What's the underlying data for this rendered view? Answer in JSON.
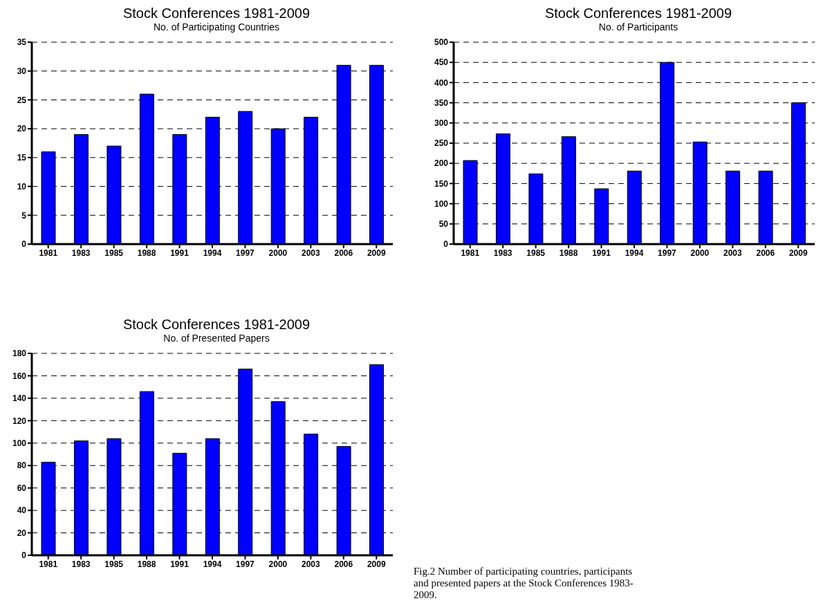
{
  "chart_data": [
    {
      "type": "bar",
      "title": "Stock Conferences 1981-2009",
      "subtitle": "No. of Participating Countries",
      "categories": [
        "1981",
        "1983",
        "1985",
        "1988",
        "1991",
        "1994",
        "1997",
        "2000",
        "2003",
        "2006",
        "2009"
      ],
      "values": [
        16,
        19,
        17,
        26,
        19,
        22,
        23,
        20,
        22,
        31,
        31
      ],
      "color": "#0000ff",
      "ylim": [
        0,
        35
      ],
      "yticks": [
        0,
        5,
        10,
        15,
        20,
        25,
        30,
        35
      ],
      "grid": "y"
    },
    {
      "type": "bar",
      "title": "Stock Conferences 1981-2009",
      "subtitle": "No. of Participants",
      "categories": [
        "1981",
        "1983",
        "1985",
        "1988",
        "1991",
        "1994",
        "1997",
        "2000",
        "2003",
        "2006",
        "2009"
      ],
      "values": [
        207,
        273,
        174,
        266,
        137,
        181,
        450,
        253,
        181,
        181,
        350
      ],
      "color": "#0000ff",
      "ylim": [
        0,
        500
      ],
      "yticks": [
        0,
        50,
        100,
        150,
        200,
        250,
        300,
        350,
        400,
        450,
        500
      ],
      "grid": "y"
    },
    {
      "type": "bar",
      "title": "Stock Conferences 1981-2009",
      "subtitle": "No. of Presented Papers",
      "categories": [
        "1981",
        "1983",
        "1985",
        "1988",
        "1991",
        "1994",
        "1997",
        "2000",
        "2003",
        "2006",
        "2009"
      ],
      "values": [
        83,
        102,
        104,
        146,
        91,
        104,
        166,
        137,
        108,
        97,
        170
      ],
      "color": "#0000ff",
      "ylim": [
        0,
        180
      ],
      "yticks": [
        0,
        20,
        40,
        60,
        80,
        100,
        120,
        140,
        160,
        180
      ],
      "grid": "y",
      "annotations": [
        "Fig.2 Number of participating countries, participants and presented papers at the Stock Conferences 1983-2009."
      ]
    }
  ]
}
